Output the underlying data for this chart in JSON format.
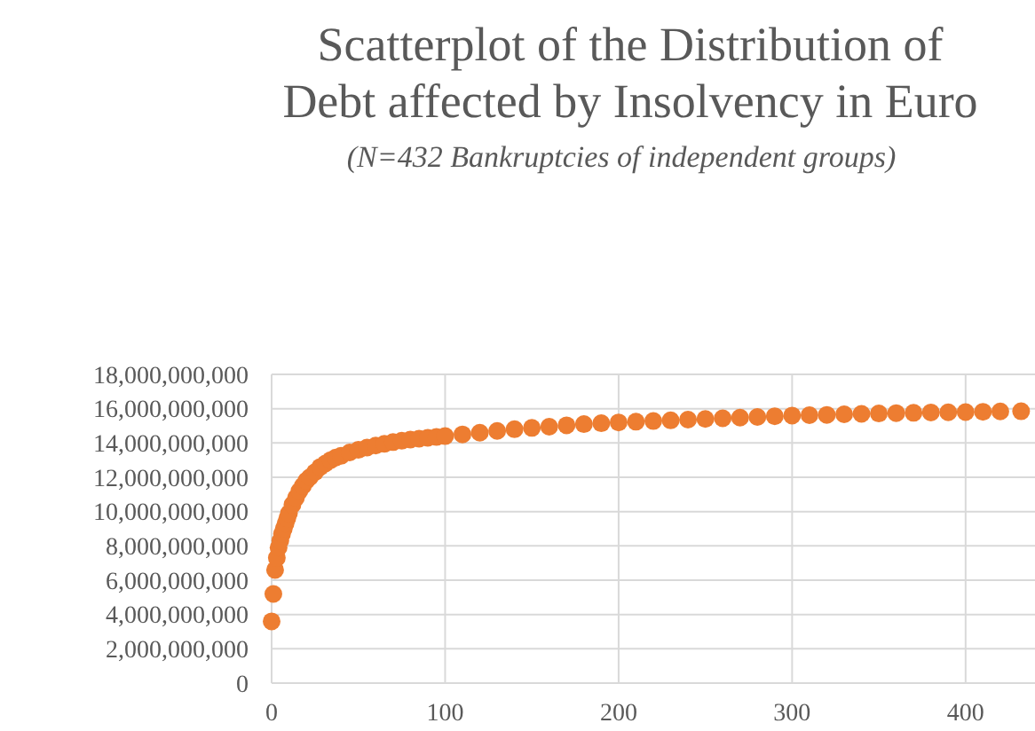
{
  "chart_data": {
    "type": "scatter",
    "title": "Scatterplot of the Distribution of Debt affected by Insolvency in Euro",
    "subtitle": "(N=432 Bankruptcies of independent groups)",
    "x": [
      0,
      1,
      2,
      3,
      4,
      5,
      6,
      7,
      8,
      9,
      10,
      12,
      14,
      16,
      18,
      20,
      22,
      25,
      28,
      31,
      34,
      37,
      40,
      45,
      50,
      55,
      60,
      65,
      70,
      75,
      80,
      85,
      90,
      95,
      100,
      110,
      120,
      130,
      140,
      150,
      160,
      170,
      180,
      190,
      200,
      210,
      220,
      230,
      240,
      250,
      260,
      270,
      280,
      290,
      300,
      310,
      320,
      330,
      340,
      350,
      360,
      370,
      380,
      390,
      400,
      410,
      420,
      432
    ],
    "series": [
      {
        "color": "#ed7d31",
        "values": [
          3600000000,
          5200000000,
          6600000000,
          7300000000,
          7900000000,
          8300000000,
          8700000000,
          9000000000,
          9300000000,
          9600000000,
          9900000000,
          10400000000,
          10800000000,
          11200000000,
          11500000000,
          11800000000,
          12000000000,
          12300000000,
          12600000000,
          12800000000,
          13000000000,
          13150000000,
          13250000000,
          13450000000,
          13600000000,
          13730000000,
          13850000000,
          13950000000,
          14050000000,
          14130000000,
          14200000000,
          14250000000,
          14300000000,
          14350000000,
          14400000000,
          14500000000,
          14600000000,
          14700000000,
          14800000000,
          14880000000,
          14950000000,
          15030000000,
          15100000000,
          15150000000,
          15200000000,
          15240000000,
          15280000000,
          15320000000,
          15360000000,
          15400000000,
          15440000000,
          15480000000,
          15520000000,
          15560000000,
          15600000000,
          15620000000,
          15640000000,
          15670000000,
          15700000000,
          15720000000,
          15740000000,
          15760000000,
          15780000000,
          15790000000,
          15800000000,
          15820000000,
          15840000000,
          15850000000
        ]
      }
    ],
    "xlim": [
      0,
      440
    ],
    "xticks": [
      0,
      100,
      200,
      300,
      400
    ],
    "ylim": [
      0,
      18000000000
    ],
    "yticks": [
      {
        "value": 0,
        "label": "0"
      },
      {
        "value": 2000000000,
        "label": "2,000,000,000"
      },
      {
        "value": 4000000000,
        "label": "4,000,000,000"
      },
      {
        "value": 6000000000,
        "label": "6,000,000,000"
      },
      {
        "value": 8000000000,
        "label": "8,000,000,000"
      },
      {
        "value": 10000000000,
        "label": "10,000,000,000"
      },
      {
        "value": 12000000000,
        "label": "12,000,000,000"
      },
      {
        "value": 14000000000,
        "label": "14,000,000,000"
      },
      {
        "value": 16000000000,
        "label": "16,000,000,000"
      },
      {
        "value": 18000000000,
        "label": "18,000,000,000"
      }
    ],
    "grid": true,
    "marker": "circle"
  }
}
